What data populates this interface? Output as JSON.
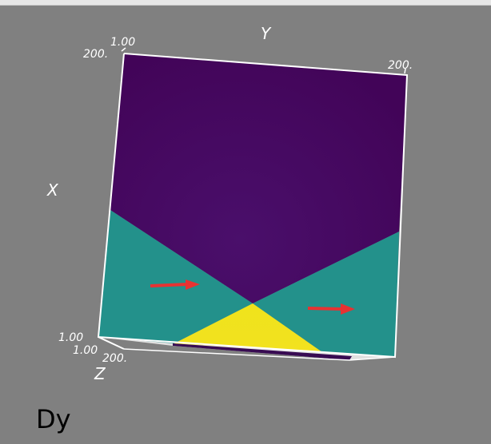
{
  "window": {
    "background_color": "#808080"
  },
  "field_label": "Dy",
  "colormap": {
    "low": "#440154",
    "mid": "#21908d",
    "high": "#f0e31f"
  },
  "glyph_color": "#e83232",
  "axes": {
    "x_title": "X",
    "y_title": "Y",
    "z_title": "Z",
    "ticks": {
      "x_top": "200.",
      "x_bottom": "1.00",
      "y_start": "1.00",
      "y_end": "200.",
      "z_start": "1.00",
      "z_end": "200."
    }
  }
}
